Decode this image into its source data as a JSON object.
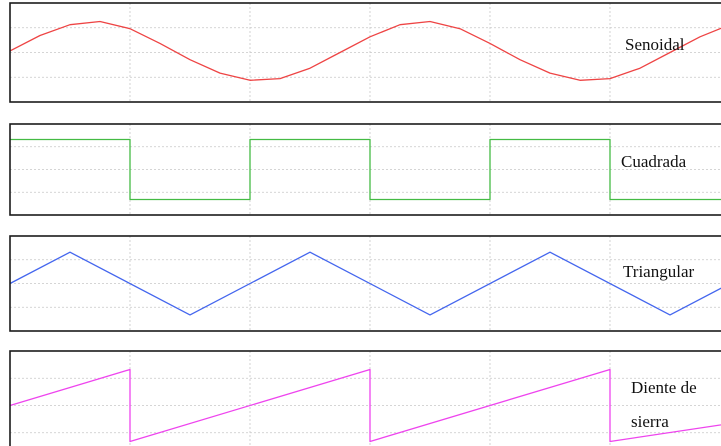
{
  "chart_data": [
    {
      "type": "line",
      "series": [
        {
          "name": "Senoidal",
          "waveform": "sine",
          "color": "#ee4444",
          "x": [
            0,
            0.125,
            0.25,
            0.375,
            0.5,
            0.625,
            0.75,
            0.875,
            1,
            1.125,
            1.25,
            1.375,
            1.5,
            1.625,
            1.75,
            1.875,
            2,
            2.125,
            2.25,
            2.375,
            2.5,
            2.625,
            2.75,
            2.875,
            3
          ],
          "y": [
            0.05,
            0.52,
            0.85,
            0.95,
            0.73,
            0.28,
            -0.22,
            -0.63,
            -0.85,
            -0.8,
            -0.48,
            0.0,
            0.48,
            0.85,
            0.95,
            0.73,
            0.28,
            -0.22,
            -0.63,
            -0.85,
            -0.8,
            -0.48,
            0.0,
            0.48,
            0.85
          ]
        }
      ],
      "labels_lines": [
        "Senoidal"
      ],
      "grid": true
    },
    {
      "type": "line",
      "series": [
        {
          "name": "Cuadrada",
          "waveform": "square",
          "color": "#44bb44",
          "x": [
            0,
            0.5,
            0.5,
            1,
            1,
            1.5,
            1.5,
            2,
            2,
            2.5,
            2.5,
            3
          ],
          "y": [
            1,
            1,
            -1,
            -1,
            1,
            1,
            -1,
            -1,
            1,
            1,
            -1,
            -1
          ]
        }
      ],
      "labels_lines": [
        "Cuadrada"
      ],
      "grid": true
    },
    {
      "type": "line",
      "series": [
        {
          "name": "Triangular",
          "waveform": "triangle",
          "color": "#4466ee",
          "x": [
            0,
            0.25,
            0.75,
            1.25,
            1.75,
            2.25,
            2.75,
            3
          ],
          "y": [
            0,
            1,
            -1,
            1,
            -1,
            1,
            -1,
            0
          ]
        }
      ],
      "labels_lines": [
        "Triangular"
      ],
      "grid": true
    },
    {
      "type": "line",
      "series": [
        {
          "name": "Diente de sierra",
          "waveform": "sawtooth",
          "color": "#ee44ee",
          "x": [
            0,
            0.5,
            0.5,
            1.5,
            1.5,
            2.5,
            2.5,
            3
          ],
          "y": [
            0,
            1,
            -1,
            1,
            -1,
            1,
            -1,
            -0.5
          ]
        }
      ],
      "labels_lines": [
        "Diente de",
        "sierra"
      ],
      "grid": true
    }
  ]
}
